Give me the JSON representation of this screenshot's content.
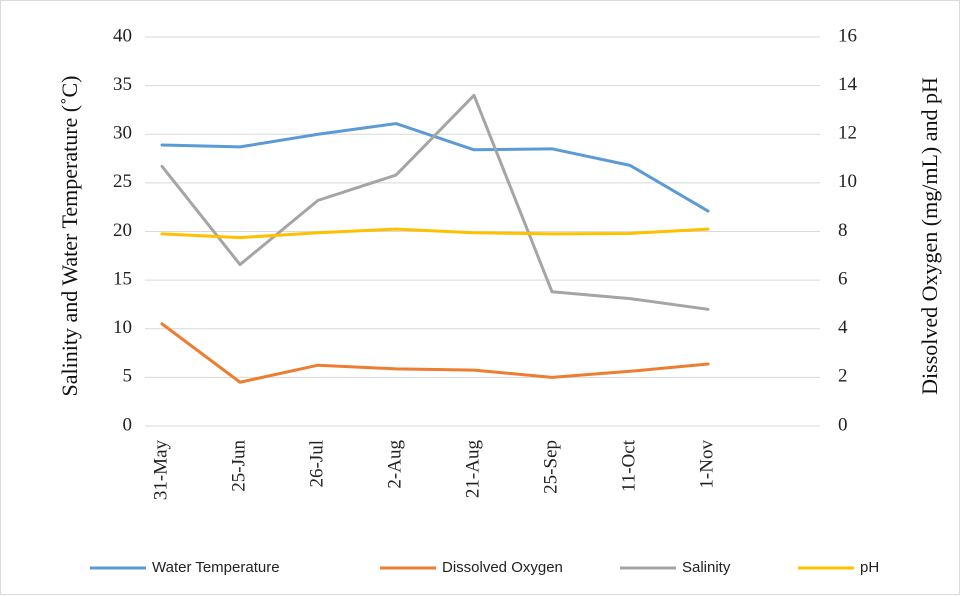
{
  "chart_data": {
    "type": "line",
    "ylabel": "Salinity and Water Temperature (˚C)",
    "y2label": "Dissolved Oxygen (mg/mL) and pH",
    "categories": [
      "31-May",
      "25-Jun",
      "26-Jul",
      "2-Aug",
      "21-Aug",
      "25-Sep",
      "11-Oct",
      "1-Nov"
    ],
    "ylim": [
      0,
      40
    ],
    "yticks": [
      0,
      5,
      10,
      15,
      20,
      25,
      30,
      35,
      40
    ],
    "y2lim": [
      0,
      16
    ],
    "y2ticks": [
      0,
      2,
      4,
      6,
      8,
      10,
      12,
      14,
      16
    ],
    "grid": true,
    "legend": "bottom",
    "series": [
      {
        "name": "Water Temperature",
        "color": "#5b9bd5",
        "values": [
          28.9,
          28.7,
          30.0,
          31.1,
          28.4,
          28.5,
          26.8,
          22.1
        ]
      },
      {
        "name": "Dissolved Oxygen",
        "color": "#ed7d31",
        "axis": "y2",
        "values": [
          4.2,
          1.8,
          2.5,
          2.35,
          2.3,
          2.0,
          2.25,
          2.55
        ]
      },
      {
        "name": "Salinity",
        "color": "#a5a5a5",
        "values": [
          26.7,
          16.6,
          23.2,
          25.8,
          34.0,
          13.8,
          13.1,
          12.0
        ]
      },
      {
        "name": "pH",
        "color": "#ffc000",
        "axis": "y2",
        "values": [
          7.9,
          7.75,
          7.95,
          8.1,
          7.95,
          7.9,
          7.92,
          8.1
        ]
      }
    ]
  }
}
